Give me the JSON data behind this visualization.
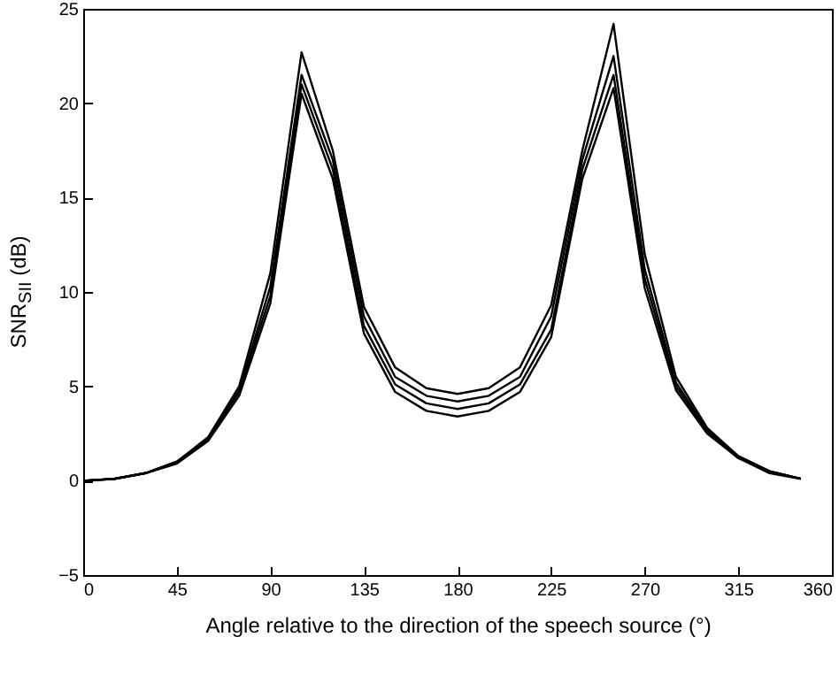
{
  "chart_data": {
    "type": "line",
    "xlabel": "Angle relative to the direction of the speech source (°)",
    "ylabel": "SNR$_{SII}$ (dB)",
    "x": [
      0,
      15,
      30,
      45,
      60,
      75,
      90,
      105,
      120,
      135,
      150,
      165,
      180,
      195,
      210,
      225,
      240,
      255,
      270,
      285,
      300,
      315,
      330,
      345
    ],
    "xlim": [
      0,
      360
    ],
    "xticks": [
      0,
      45,
      90,
      135,
      180,
      225,
      270,
      315,
      360
    ],
    "ylim": [
      -5,
      25
    ],
    "yticks": [
      -5,
      0,
      5,
      10,
      15,
      20,
      25
    ],
    "grid": false,
    "marker": "none",
    "line_style": "solid",
    "series": [
      {
        "color": "#000000",
        "values": [
          0,
          0.1,
          0.4,
          1.0,
          2.3,
          5.0,
          11,
          22.7,
          17.5,
          9.2,
          6.0,
          4.9,
          4.6,
          4.9,
          6.0,
          9.3,
          17.5,
          24.2,
          12,
          5.5,
          2.8,
          1.3,
          0.5,
          0.1
        ]
      },
      {
        "color": "#000000",
        "values": [
          0,
          0.1,
          0.4,
          1.0,
          2.2,
          4.8,
          10.3,
          21.5,
          17,
          8.7,
          5.5,
          4.5,
          4.2,
          4.5,
          5.5,
          8.7,
          17,
          22.5,
          11.2,
          5.2,
          2.7,
          1.3,
          0.5,
          0.1
        ]
      },
      {
        "color": "#000000",
        "values": [
          0,
          0.1,
          0.4,
          1.0,
          2.2,
          4.7,
          9.8,
          21,
          16.5,
          8.2,
          5.1,
          4.1,
          3.8,
          4.1,
          5.1,
          8.0,
          16.5,
          21.5,
          10.7,
          5.0,
          2.6,
          1.2,
          0.5,
          0.1
        ]
      },
      {
        "color": "#000000",
        "values": [
          0,
          0.1,
          0.4,
          0.9,
          2.1,
          4.5,
          9.4,
          20.5,
          16,
          7.8,
          4.7,
          3.7,
          3.4,
          3.7,
          4.7,
          7.6,
          16,
          20.8,
          10.2,
          4.8,
          2.5,
          1.2,
          0.4,
          0.1
        ]
      }
    ]
  }
}
